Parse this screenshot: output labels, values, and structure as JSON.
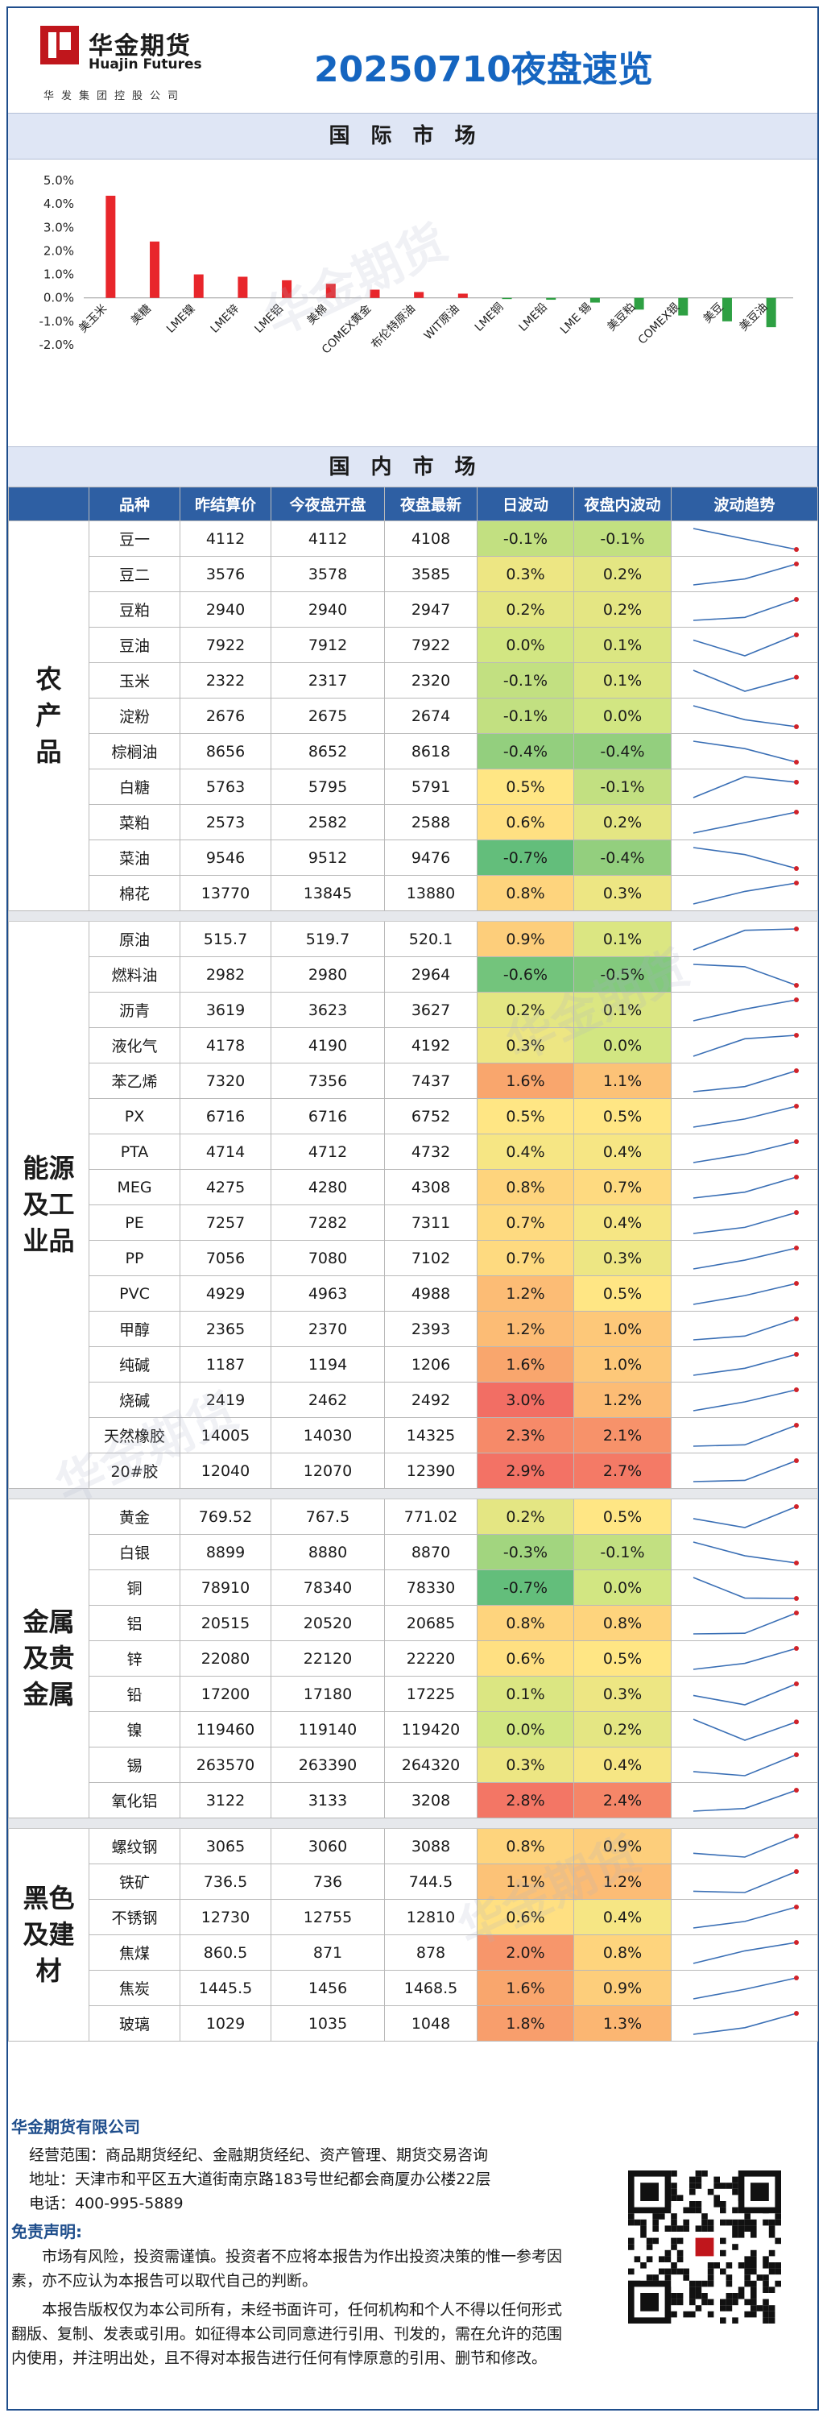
{
  "header": {
    "logo_cn": "华金期货",
    "logo_en": "Huajin Futures",
    "logo_sub": "华发集团控股公司",
    "title": "20250710夜盘速览"
  },
  "intl_section": {
    "title": "国际市场"
  },
  "domestic_section": {
    "title": "国内市场"
  },
  "chart_data": {
    "type": "bar",
    "title": "",
    "categories": [
      "美玉米",
      "美糖",
      "LME镍",
      "LME锌",
      "LME铝",
      "美棉",
      "COMEX黄金",
      "布伦特原油",
      "WIT原油",
      "LME铜",
      "LME铅",
      "LME 锡",
      "美豆粕",
      "COMEX银",
      "美豆",
      "美豆油"
    ],
    "values": [
      4.35,
      2.4,
      1.0,
      0.9,
      0.75,
      0.6,
      0.35,
      0.25,
      0.18,
      -0.05,
      -0.08,
      -0.2,
      -0.5,
      -0.75,
      -1.0,
      -1.25
    ],
    "ylim": [
      -2.0,
      5.0
    ],
    "yticks": [
      "5.0%",
      "4.0%",
      "3.0%",
      "2.0%",
      "1.0%",
      "0.0%",
      "-1.0%",
      "-2.0%"
    ],
    "colors": {
      "positive": "#e8262b",
      "negative": "#2ea043"
    }
  },
  "table": {
    "headers": [
      "品种",
      "昨结算价",
      "今夜盘开盘",
      "夜盘最新",
      "日波动",
      "夜盘内波动",
      "波动趋势"
    ],
    "groups": [
      {
        "category": "农产品",
        "rows": [
          {
            "name": "豆一",
            "prev": "4112",
            "open": "4112",
            "last": "4108",
            "day": "-0.1%",
            "night": "-0.1%",
            "trend": [
              4112,
              4110,
              4108
            ]
          },
          {
            "name": "豆二",
            "prev": "3576",
            "open": "3578",
            "last": "3585",
            "day": "0.3%",
            "night": "0.2%",
            "trend": [
              3578,
              3580,
              3585
            ]
          },
          {
            "name": "豆粕",
            "prev": "2940",
            "open": "2940",
            "last": "2947",
            "day": "0.2%",
            "night": "0.2%",
            "trend": [
              2940,
              2941,
              2947
            ]
          },
          {
            "name": "豆油",
            "prev": "7922",
            "open": "7912",
            "last": "7922",
            "day": "0.0%",
            "night": "0.1%",
            "trend": [
              7918,
              7906,
              7922
            ]
          },
          {
            "name": "玉米",
            "prev": "2322",
            "open": "2317",
            "last": "2320",
            "day": "-0.1%",
            "night": "0.1%",
            "trend": [
              2322,
              2316,
              2320
            ]
          },
          {
            "name": "淀粉",
            "prev": "2676",
            "open": "2675",
            "last": "2674",
            "day": "-0.1%",
            "night": "0.0%",
            "trend": [
              2677,
              2675,
              2674
            ]
          },
          {
            "name": "棕榈油",
            "prev": "8656",
            "open": "8652",
            "last": "8618",
            "day": "-0.4%",
            "night": "-0.4%",
            "trend": [
              8652,
              8640,
              8618
            ]
          },
          {
            "name": "白糖",
            "prev": "5763",
            "open": "5795",
            "last": "5791",
            "day": "0.5%",
            "night": "-0.1%",
            "trend": [
              5780,
              5795,
              5791
            ]
          },
          {
            "name": "菜粕",
            "prev": "2573",
            "open": "2582",
            "last": "2588",
            "day": "0.6%",
            "night": "0.2%",
            "trend": [
              2576,
              2582,
              2588
            ]
          },
          {
            "name": "菜油",
            "prev": "9546",
            "open": "9512",
            "last": "9476",
            "day": "-0.7%",
            "night": "-0.4%",
            "trend": [
              9512,
              9500,
              9476
            ]
          },
          {
            "name": "棉花",
            "prev": "13770",
            "open": "13845",
            "last": "13880",
            "day": "0.8%",
            "night": "0.3%",
            "trend": [
              13830,
              13860,
              13880
            ]
          }
        ]
      },
      {
        "category": "能源及工业品",
        "rows": [
          {
            "name": "原油",
            "prev": "515.7",
            "open": "519.7",
            "last": "520.1",
            "day": "0.9%",
            "night": "0.1%",
            "trend": [
              514,
              519.7,
              520.1
            ]
          },
          {
            "name": "燃料油",
            "prev": "2982",
            "open": "2980",
            "last": "2964",
            "day": "-0.6%",
            "night": "-0.5%",
            "trend": [
              2982,
              2980,
              2964
            ]
          },
          {
            "name": "沥青",
            "prev": "3619",
            "open": "3623",
            "last": "3627",
            "day": "0.2%",
            "night": "0.1%",
            "trend": [
              3618,
              3623,
              3627
            ]
          },
          {
            "name": "液化气",
            "prev": "4178",
            "open": "4190",
            "last": "4192",
            "day": "0.3%",
            "night": "0.0%",
            "trend": [
              4180,
              4190,
              4192
            ]
          },
          {
            "name": "苯乙烯",
            "prev": "7320",
            "open": "7356",
            "last": "7437",
            "day": "1.6%",
            "night": "1.1%",
            "trend": [
              7330,
              7356,
              7437
            ]
          },
          {
            "name": "PX",
            "prev": "6716",
            "open": "6716",
            "last": "6752",
            "day": "0.5%",
            "night": "0.5%",
            "trend": [
              6716,
              6730,
              6752
            ]
          },
          {
            "name": "PTA",
            "prev": "4714",
            "open": "4712",
            "last": "4732",
            "day": "0.4%",
            "night": "0.4%",
            "trend": [
              4712,
              4720,
              4732
            ]
          },
          {
            "name": "MEG",
            "prev": "4275",
            "open": "4280",
            "last": "4308",
            "day": "0.8%",
            "night": "0.7%",
            "trend": [
              4276,
              4285,
              4308
            ]
          },
          {
            "name": "PE",
            "prev": "7257",
            "open": "7282",
            "last": "7311",
            "day": "0.7%",
            "night": "0.4%",
            "trend": [
              7270,
              7282,
              7311
            ]
          },
          {
            "name": "PP",
            "prev": "7056",
            "open": "7080",
            "last": "7102",
            "day": "0.7%",
            "night": "0.3%",
            "trend": [
              7064,
              7080,
              7102
            ]
          },
          {
            "name": "PVC",
            "prev": "4929",
            "open": "4963",
            "last": "4988",
            "day": "1.2%",
            "night": "0.5%",
            "trend": [
              4945,
              4963,
              4988
            ]
          },
          {
            "name": "甲醇",
            "prev": "2365",
            "open": "2370",
            "last": "2393",
            "day": "1.2%",
            "night": "1.0%",
            "trend": [
              2365,
              2370,
              2393
            ]
          },
          {
            "name": "纯碱",
            "prev": "1187",
            "open": "1194",
            "last": "1206",
            "day": "1.6%",
            "night": "1.0%",
            "trend": [
              1188,
              1194,
              1206
            ]
          },
          {
            "name": "烧碱",
            "prev": "2419",
            "open": "2462",
            "last": "2492",
            "day": "3.0%",
            "night": "1.2%",
            "trend": [
              2440,
              2462,
              2492
            ]
          },
          {
            "name": "天然橡胶",
            "prev": "14005",
            "open": "14030",
            "last": "14325",
            "day": "2.3%",
            "night": "2.1%",
            "trend": [
              14010,
              14030,
              14325
            ]
          },
          {
            "name": "20#胶",
            "prev": "12040",
            "open": "12070",
            "last": "12390",
            "day": "2.9%",
            "night": "2.7%",
            "trend": [
              12050,
              12070,
              12390
            ]
          }
        ]
      },
      {
        "category": "金属及贵金属",
        "rows": [
          {
            "name": "黄金",
            "prev": "769.52",
            "open": "767.5",
            "last": "771.02",
            "day": "0.2%",
            "night": "0.5%",
            "trend": [
              769,
              767.5,
              771.02
            ]
          },
          {
            "name": "白银",
            "prev": "8899",
            "open": "8880",
            "last": "8870",
            "day": "-0.3%",
            "night": "-0.1%",
            "trend": [
              8899,
              8880,
              8870
            ]
          },
          {
            "name": "铜",
            "prev": "78910",
            "open": "78340",
            "last": "78330",
            "day": "-0.7%",
            "night": "0.0%",
            "trend": [
              78910,
              78340,
              78330
            ]
          },
          {
            "name": "铝",
            "prev": "20515",
            "open": "20520",
            "last": "20685",
            "day": "0.8%",
            "night": "0.8%",
            "trend": [
              20515,
              20520,
              20685
            ]
          },
          {
            "name": "锌",
            "prev": "22080",
            "open": "22120",
            "last": "22220",
            "day": "0.6%",
            "night": "0.5%",
            "trend": [
              22080,
              22120,
              22220
            ]
          },
          {
            "name": "铅",
            "prev": "17200",
            "open": "17180",
            "last": "17225",
            "day": "0.1%",
            "night": "0.3%",
            "trend": [
              17200,
              17180,
              17225
            ]
          },
          {
            "name": "镍",
            "prev": "119460",
            "open": "119140",
            "last": "119420",
            "day": "0.0%",
            "night": "0.2%",
            "trend": [
              119460,
              119140,
              119420
            ]
          },
          {
            "name": "锡",
            "prev": "263570",
            "open": "263390",
            "last": "264320",
            "day": "0.3%",
            "night": "0.4%",
            "trend": [
              263570,
              263390,
              264320
            ]
          },
          {
            "name": "氧化铝",
            "prev": "3122",
            "open": "3133",
            "last": "3208",
            "day": "2.8%",
            "night": "2.4%",
            "trend": [
              3122,
              3133,
              3208
            ]
          }
        ]
      },
      {
        "category": "黑色及建材",
        "rows": [
          {
            "name": "螺纹钢",
            "prev": "3065",
            "open": "3060",
            "last": "3088",
            "day": "0.8%",
            "night": "0.9%",
            "trend": [
              3065,
              3060,
              3088
            ]
          },
          {
            "name": "铁矿",
            "prev": "736.5",
            "open": "736",
            "last": "744.5",
            "day": "1.1%",
            "night": "1.2%",
            "trend": [
              736.5,
              736,
              744.5
            ]
          },
          {
            "name": "不锈钢",
            "prev": "12730",
            "open": "12755",
            "last": "12810",
            "day": "0.6%",
            "night": "0.4%",
            "trend": [
              12730,
              12755,
              12810
            ]
          },
          {
            "name": "焦煤",
            "prev": "860.5",
            "open": "871",
            "last": "878",
            "day": "2.0%",
            "night": "0.8%",
            "trend": [
              860.5,
              871,
              878
            ]
          },
          {
            "name": "焦炭",
            "prev": "1445.5",
            "open": "1456",
            "last": "1468.5",
            "day": "1.6%",
            "night": "0.9%",
            "trend": [
              1445.5,
              1456,
              1468.5
            ]
          },
          {
            "name": "玻璃",
            "prev": "1029",
            "open": "1035",
            "last": "1048",
            "day": "1.8%",
            "night": "1.3%",
            "trend": [
              1029,
              1035,
              1048
            ]
          }
        ]
      }
    ]
  },
  "footer": {
    "company": "华金期货有限公司",
    "scope": "经营范围：商品期货经纪、金融期货经纪、资产管理、期货交易咨询",
    "address": "地址：天津市和平区五大道街南京路183号世纪都会商厦办公楼22层",
    "phone": "电话：400-995-5889",
    "disclaimer_title": "免责声明:",
    "disclaimer_1": "市场有风险，投资需谨慎。投资者不应将本报告为作出投资决策的惟一参考因素，亦不应认为本报告可以取代自己的判断。",
    "disclaimer_2": "本报告版权仅为本公司所有，未经书面许可，任何机构和个人不得以任何形式翻版、复制、发表或引用。如征得本公司同意进行引用、刊发的，需在允许的范围内使用，并注明出处，且不得对本报告进行任何有悖原意的引用、删节和修改。"
  }
}
